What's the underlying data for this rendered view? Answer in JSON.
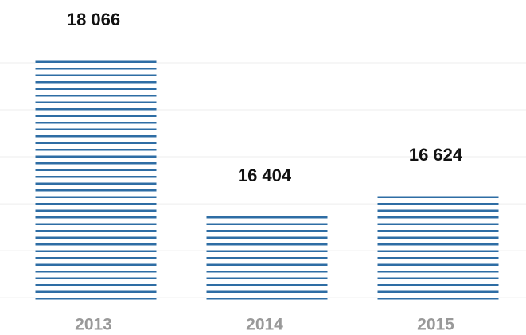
{
  "chart_data": {
    "type": "bar",
    "categories": [
      "2013",
      "2014",
      "2015"
    ],
    "values": [
      18066,
      16404,
      16624
    ],
    "value_labels": [
      "18 066",
      "16 404",
      "16 624"
    ],
    "color": "#2e6da4",
    "ylim": [
      15450,
      18500
    ],
    "yticks": [
      15500,
      16000,
      16500,
      17000,
      17500,
      18000
    ],
    "grid": true
  }
}
